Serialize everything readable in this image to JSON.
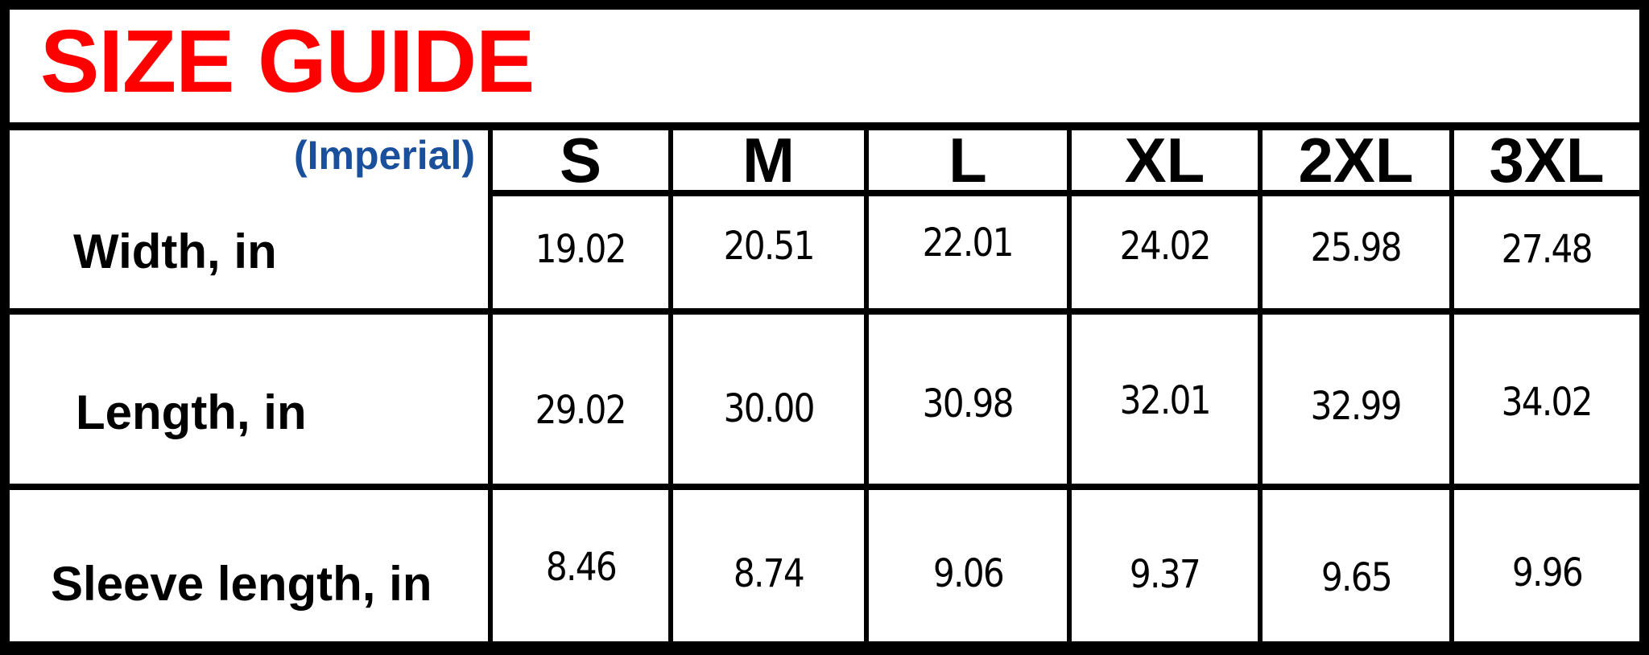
{
  "title": "SIZE GUIDE",
  "unit_label": "(Imperial)",
  "title_color": "#ff0000",
  "unit_color": "#1a4f9c",
  "sizes": [
    "S",
    "M",
    "L",
    "XL",
    "2XL",
    "3XL"
  ],
  "rows": [
    {
      "label": "Width, in",
      "values": [
        "19.02",
        "20.51",
        "22.01",
        "24.02",
        "25.98",
        "27.48"
      ]
    },
    {
      "label": "Length, in",
      "values": [
        "29.02",
        "30.00",
        "30.98",
        "32.01",
        "32.99",
        "34.02"
      ]
    },
    {
      "label": "Sleeve length, in",
      "values": [
        "8.46",
        "8.74",
        "9.06",
        "9.37",
        "9.65",
        "9.96"
      ]
    }
  ]
}
